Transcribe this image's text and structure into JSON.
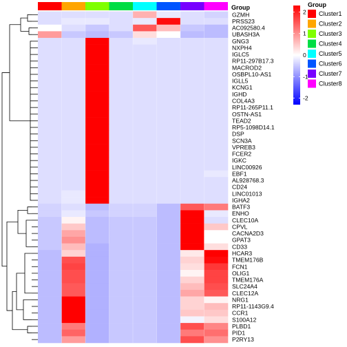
{
  "chart_data": {
    "type": "heatmap",
    "annotation": {
      "title": "Group",
      "clusters": [
        {
          "name": "Cluster1",
          "color": "#ff0000"
        },
        {
          "name": "Cluster2",
          "color": "#ffa500"
        },
        {
          "name": "Cluster3",
          "color": "#7fff00"
        },
        {
          "name": "Cluster4",
          "color": "#00dd44"
        },
        {
          "name": "Cluster5",
          "color": "#00ffff"
        },
        {
          "name": "Cluster6",
          "color": "#0055ff"
        },
        {
          "name": "Cluster7",
          "color": "#7700ff"
        },
        {
          "name": "Cluster8",
          "color": "#ff00ff"
        }
      ]
    },
    "scale": {
      "ticks": [
        2,
        1,
        0,
        -1,
        -2
      ],
      "range": [
        -2.3,
        2.3
      ],
      "colors": {
        "low": "#0000ff",
        "mid": "#ffffff",
        "high": "#ff0000"
      }
    },
    "rows": [
      {
        "gene": "GZMH",
        "values": [
          -0.3,
          -0.3,
          -0.3,
          -0.3,
          0.7,
          -0.2,
          -0.3,
          -0.4
        ]
      },
      {
        "gene": "PRSS23",
        "values": [
          -0.3,
          -0.2,
          -0.2,
          -0.3,
          -0.2,
          2.2,
          -0.3,
          -0.3
        ]
      },
      {
        "gene": "AC092580.4",
        "values": [
          0.0,
          -0.3,
          -0.5,
          -0.3,
          1.5,
          0.6,
          -0.5,
          -0.6
        ]
      },
      {
        "gene": "UBASH3A",
        "values": [
          0.9,
          -0.5,
          -0.6,
          -0.5,
          0.3,
          0.0,
          -0.6,
          -0.6
        ]
      },
      {
        "gene": "GNG3",
        "values": [
          -0.3,
          -0.3,
          2.5,
          -0.3,
          -0.2,
          -0.3,
          -0.3,
          -0.3
        ]
      },
      {
        "gene": "NXPH4",
        "values": [
          -0.3,
          -0.3,
          2.5,
          -0.3,
          -0.3,
          -0.3,
          -0.3,
          -0.3
        ]
      },
      {
        "gene": "IGLC5",
        "values": [
          -0.3,
          -0.3,
          2.5,
          -0.3,
          -0.3,
          -0.3,
          -0.3,
          -0.3
        ]
      },
      {
        "gene": "RP11-297B17.3",
        "values": [
          -0.3,
          -0.3,
          2.5,
          -0.3,
          -0.3,
          -0.3,
          -0.3,
          -0.3
        ]
      },
      {
        "gene": "MACROD2",
        "values": [
          -0.3,
          -0.3,
          2.5,
          -0.3,
          -0.3,
          -0.3,
          -0.3,
          -0.3
        ]
      },
      {
        "gene": "OSBPL10-AS1",
        "values": [
          -0.3,
          -0.3,
          2.5,
          -0.3,
          -0.3,
          -0.3,
          -0.3,
          -0.3
        ]
      },
      {
        "gene": "IGLL5",
        "values": [
          -0.3,
          -0.3,
          2.5,
          -0.3,
          -0.3,
          -0.3,
          -0.3,
          -0.3
        ]
      },
      {
        "gene": "KCNG1",
        "values": [
          -0.3,
          -0.3,
          2.5,
          -0.3,
          -0.3,
          -0.3,
          -0.3,
          -0.3
        ]
      },
      {
        "gene": "IGHD",
        "values": [
          -0.3,
          -0.3,
          2.5,
          -0.3,
          -0.3,
          -0.3,
          -0.3,
          -0.3
        ]
      },
      {
        "gene": "COL4A3",
        "values": [
          -0.3,
          -0.3,
          2.5,
          -0.3,
          -0.3,
          -0.3,
          -0.3,
          -0.3
        ]
      },
      {
        "gene": "RP11-265P11.1",
        "values": [
          -0.3,
          -0.3,
          2.5,
          -0.3,
          -0.3,
          -0.3,
          -0.3,
          -0.3
        ]
      },
      {
        "gene": "OSTN-AS1",
        "values": [
          -0.3,
          -0.3,
          2.5,
          -0.3,
          -0.3,
          -0.3,
          -0.3,
          -0.3
        ]
      },
      {
        "gene": "TEAD2",
        "values": [
          -0.3,
          -0.3,
          2.5,
          -0.3,
          -0.3,
          -0.3,
          -0.3,
          -0.3
        ]
      },
      {
        "gene": "RP5-1098D14.1",
        "values": [
          -0.3,
          -0.3,
          2.5,
          -0.3,
          -0.3,
          -0.3,
          -0.3,
          -0.3
        ]
      },
      {
        "gene": "DSP",
        "values": [
          -0.3,
          -0.3,
          2.5,
          -0.3,
          -0.3,
          -0.3,
          -0.3,
          -0.3
        ]
      },
      {
        "gene": "SCN3A",
        "values": [
          -0.3,
          -0.3,
          2.5,
          -0.3,
          -0.3,
          -0.3,
          -0.3,
          -0.3
        ]
      },
      {
        "gene": "VPREB3",
        "values": [
          -0.3,
          -0.3,
          2.5,
          -0.3,
          -0.3,
          -0.3,
          -0.3,
          -0.3
        ]
      },
      {
        "gene": "FCER2",
        "values": [
          -0.3,
          -0.3,
          2.5,
          -0.3,
          -0.3,
          -0.3,
          -0.3,
          -0.3
        ]
      },
      {
        "gene": "IGKC",
        "values": [
          -0.3,
          -0.3,
          2.5,
          -0.3,
          -0.3,
          -0.3,
          -0.3,
          -0.3
        ]
      },
      {
        "gene": "LINC00926",
        "values": [
          -0.3,
          -0.3,
          2.5,
          -0.3,
          -0.3,
          -0.3,
          -0.3,
          -0.3
        ]
      },
      {
        "gene": "EBF1",
        "values": [
          -0.3,
          -0.3,
          2.5,
          -0.3,
          -0.3,
          -0.3,
          -0.3,
          -0.2
        ]
      },
      {
        "gene": "AL928768.3",
        "values": [
          -0.3,
          -0.3,
          2.5,
          -0.3,
          -0.3,
          -0.3,
          -0.3,
          -0.3
        ]
      },
      {
        "gene": "CD24",
        "values": [
          -0.3,
          -0.3,
          2.5,
          -0.3,
          -0.3,
          -0.3,
          -0.3,
          -0.3
        ]
      },
      {
        "gene": "LINC01013",
        "values": [
          -0.3,
          -0.2,
          2.5,
          -0.3,
          -0.3,
          -0.3,
          -0.3,
          -0.3
        ]
      },
      {
        "gene": "IGHA2",
        "values": [
          -0.3,
          -0.2,
          2.5,
          -0.3,
          -0.3,
          -0.3,
          -0.3,
          -0.3
        ]
      },
      {
        "gene": "BATF3",
        "values": [
          -0.4,
          -0.3,
          -0.6,
          -0.4,
          -0.4,
          -0.6,
          1.5,
          1.2
        ]
      },
      {
        "gene": "ENHO",
        "values": [
          -0.4,
          -0.2,
          -0.5,
          -0.4,
          -0.4,
          -0.6,
          2.5,
          -0.2
        ]
      },
      {
        "gene": "CLEC10A",
        "values": [
          -0.5,
          0.1,
          -0.6,
          -0.5,
          -0.5,
          -0.6,
          2.5,
          -0.3
        ]
      },
      {
        "gene": "CPVL",
        "values": [
          -0.5,
          0.5,
          -0.6,
          -0.5,
          -0.5,
          -0.6,
          2.5,
          0.5
        ]
      },
      {
        "gene": "CACNA2D3",
        "values": [
          -0.5,
          0.8,
          -0.6,
          -0.5,
          -0.5,
          -0.6,
          2.5,
          0.0
        ]
      },
      {
        "gene": "GPAT3",
        "values": [
          -0.5,
          1.0,
          -0.6,
          -0.5,
          -0.5,
          -0.6,
          2.5,
          0.0
        ]
      },
      {
        "gene": "CD33",
        "values": [
          -0.5,
          0.6,
          -0.7,
          -0.5,
          -0.5,
          -0.6,
          2.5,
          0.3
        ]
      },
      {
        "gene": "HCAR3",
        "values": [
          -0.6,
          0.4,
          -0.7,
          -0.5,
          -0.5,
          -0.6,
          0.2,
          2.5
        ]
      },
      {
        "gene": "TMEM176B",
        "values": [
          -0.6,
          1.6,
          -0.7,
          -0.5,
          -0.5,
          -0.6,
          0.4,
          2.2
        ]
      },
      {
        "gene": "FCN1",
        "values": [
          -0.6,
          1.7,
          -0.7,
          -0.5,
          -0.5,
          -0.6,
          0.3,
          1.8
        ]
      },
      {
        "gene": "OLIG1",
        "values": [
          -0.6,
          1.6,
          -0.7,
          -0.5,
          -0.5,
          -0.6,
          0.1,
          1.7
        ]
      },
      {
        "gene": "TMEM176A",
        "values": [
          -0.6,
          1.6,
          -0.7,
          -0.5,
          -0.5,
          -0.6,
          0.4,
          1.7
        ]
      },
      {
        "gene": "SLC24A4",
        "values": [
          -0.6,
          1.5,
          -0.7,
          -0.5,
          -0.5,
          -0.6,
          0.6,
          1.6
        ]
      },
      {
        "gene": "CLEC12A",
        "values": [
          -0.6,
          1.5,
          -0.7,
          -0.5,
          -0.5,
          -0.6,
          0.8,
          1.5
        ]
      },
      {
        "gene": "NRG1",
        "values": [
          -0.6,
          2.3,
          -0.7,
          -0.5,
          -0.5,
          -0.6,
          0.4,
          0.1
        ]
      },
      {
        "gene": "RP11-1143G9.4",
        "values": [
          -0.6,
          2.3,
          -0.7,
          -0.5,
          -0.5,
          -0.6,
          0.4,
          0.6
        ]
      },
      {
        "gene": "CCR1",
        "values": [
          -0.6,
          2.3,
          -0.7,
          -0.5,
          -0.5,
          -0.6,
          0.5,
          0.5
        ]
      },
      {
        "gene": "S100A12",
        "values": [
          -0.6,
          2.4,
          -0.7,
          -0.5,
          -0.5,
          -0.6,
          -0.1,
          0.3
        ]
      },
      {
        "gene": "PLBD1",
        "values": [
          -0.6,
          1.2,
          -0.7,
          -0.5,
          -0.5,
          -0.6,
          1.6,
          1.1
        ]
      },
      {
        "gene": "PID1",
        "values": [
          -0.6,
          1.4,
          -0.7,
          -0.5,
          -0.5,
          -0.6,
          1.2,
          1.3
        ]
      },
      {
        "gene": "P2RY13",
        "values": [
          -0.6,
          0.9,
          -0.7,
          -0.5,
          -0.5,
          -0.6,
          1.6,
          1.0
        ]
      }
    ]
  }
}
